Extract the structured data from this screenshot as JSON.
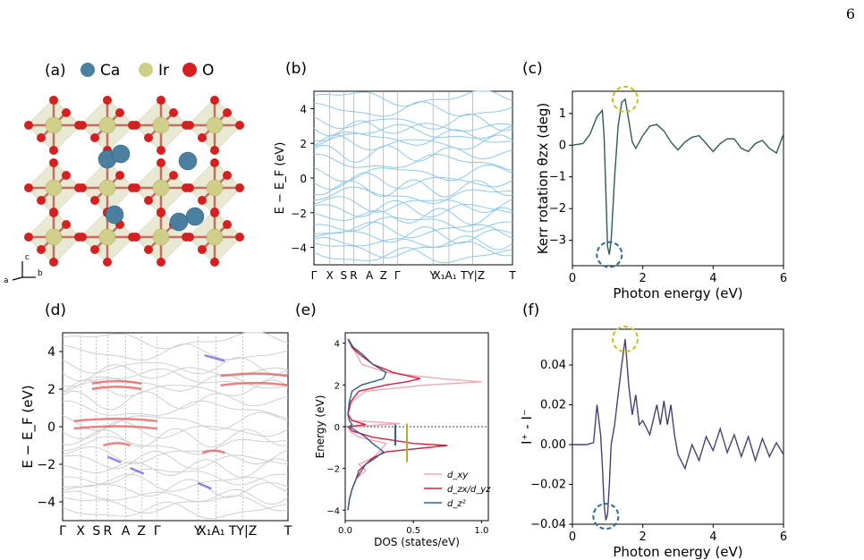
{
  "page_number": "6",
  "panel_labels": {
    "a": "(a)",
    "b": "(b)",
    "c": "(c)",
    "d": "(d)",
    "e": "(e)",
    "f": "(f)"
  },
  "legend_a": [
    {
      "label": "Ca",
      "color": "#4a7fa0"
    },
    {
      "label": "Ir",
      "color": "#cfcf8a"
    },
    {
      "label": "O",
      "color": "#d42020"
    }
  ],
  "axes_a": {
    "c": "c",
    "a": "a",
    "b": "b"
  },
  "band_b": {
    "ylabel": "E − E_F (eV)",
    "yticks": [
      "4",
      "2",
      "0",
      "−2",
      "−4"
    ],
    "xticks": [
      "Γ",
      "X",
      "S",
      "R",
      "A",
      "Z",
      "Γ",
      "Y",
      "X₁A₁",
      "TY|Z",
      "T"
    ]
  },
  "band_d": {
    "ylabel": "E − E_F (eV)",
    "yticks": [
      "4",
      "2",
      "0",
      "−2",
      "−4"
    ],
    "xticks": [
      "Γ",
      "X",
      "S",
      "R",
      "A",
      "Z",
      "Γ",
      "Y",
      "X₁A₁",
      "TY|Z",
      "T"
    ]
  },
  "chart_data": [
    {
      "panel": "c",
      "type": "line",
      "xlabel": "Photon energy (eV)",
      "ylabel": "Kerr rotation θzx (deg)",
      "xlim": [
        0,
        6
      ],
      "ylim": [
        -3.8,
        1.7
      ],
      "xticks": [
        "0",
        "2",
        "4",
        "6"
      ],
      "yticks": [
        "1",
        "0",
        "−1",
        "−2",
        "−3"
      ],
      "color": "#2f5a55",
      "x": [
        0,
        0.3,
        0.5,
        0.7,
        0.85,
        0.9,
        0.95,
        1.0,
        1.05,
        1.1,
        1.2,
        1.3,
        1.4,
        1.5,
        1.6,
        1.7,
        1.8,
        2.0,
        2.2,
        2.4,
        2.6,
        2.8,
        3.0,
        3.2,
        3.4,
        3.6,
        3.8,
        4.0,
        4.2,
        4.4,
        4.6,
        4.8,
        5.0,
        5.2,
        5.4,
        5.6,
        5.8,
        6.0
      ],
      "y": [
        0.0,
        0.05,
        0.35,
        0.9,
        1.1,
        0.3,
        -1.5,
        -3.2,
        -3.45,
        -3.0,
        -1.0,
        0.6,
        1.35,
        1.45,
        0.8,
        0.1,
        -0.1,
        0.3,
        0.6,
        0.65,
        0.45,
        0.1,
        -0.15,
        0.1,
        0.25,
        0.3,
        0.05,
        -0.2,
        0.05,
        0.2,
        0.2,
        -0.1,
        -0.2,
        0.05,
        0.15,
        -0.1,
        -0.25,
        0.35
      ]
    },
    {
      "panel": "e",
      "type": "line",
      "xlabel": "DOS (states/eV)",
      "ylabel": "Energy (eV)",
      "xlim": [
        0,
        1.05
      ],
      "ylim": [
        -4.5,
        4.5
      ],
      "xticks": [
        "0.0",
        "0.5",
        "1.0"
      ],
      "yticks": [
        "4",
        "2",
        "0",
        "−2",
        "−4"
      ],
      "series": [
        {
          "name": "d_xy",
          "color": "#f0a8b4",
          "e": [
            4.2,
            3.8,
            3.5,
            3.0,
            2.6,
            2.3,
            2.15,
            2.0,
            1.7,
            1.2,
            0.6,
            0.3,
            0.15,
            0.0,
            -0.2,
            -0.5,
            -0.8,
            -1.2,
            -1.5,
            -1.8,
            -2.1,
            -2.5,
            -3.0,
            -3.5,
            -4.0
          ],
          "d": [
            0.03,
            0.05,
            0.08,
            0.12,
            0.3,
            0.7,
            1.0,
            0.6,
            0.15,
            0.05,
            0.02,
            0.03,
            0.4,
            0.05,
            0.03,
            0.1,
            0.3,
            0.25,
            0.2,
            0.1,
            0.15,
            0.08,
            0.05,
            0.03,
            0.02
          ]
        },
        {
          "name": "d_zx/d_yz",
          "color": "#d02040",
          "e": [
            4.2,
            3.8,
            3.5,
            3.0,
            2.6,
            2.3,
            2.15,
            2.0,
            1.7,
            1.2,
            0.6,
            0.3,
            0.1,
            0.0,
            -0.2,
            -0.5,
            -0.8,
            -0.9,
            -1.2,
            -1.5,
            -1.8,
            -2.1,
            -2.5,
            -3.0,
            -3.5,
            -4.0
          ],
          "d": [
            0.02,
            0.05,
            0.1,
            0.2,
            0.35,
            0.55,
            0.45,
            0.3,
            0.1,
            0.04,
            0.02,
            0.05,
            0.15,
            0.02,
            0.05,
            0.2,
            0.5,
            0.75,
            0.3,
            0.2,
            0.15,
            0.1,
            0.08,
            0.05,
            0.03,
            0.02
          ]
        },
        {
          "name": "d_z²",
          "color": "#2f6090",
          "e": [
            4.2,
            3.8,
            3.5,
            3.0,
            2.6,
            2.3,
            2.15,
            2.0,
            1.7,
            1.2,
            0.6,
            0.3,
            0.1,
            0.0,
            -0.2,
            -0.5,
            -0.8,
            -1.2,
            -1.5,
            -1.8,
            -2.1,
            -2.5,
            -3.0,
            -3.5,
            -4.0
          ],
          "d": [
            0.02,
            0.06,
            0.12,
            0.2,
            0.3,
            0.28,
            0.2,
            0.12,
            0.05,
            0.03,
            0.02,
            0.03,
            0.05,
            0.03,
            0.08,
            0.15,
            0.2,
            0.28,
            0.22,
            0.15,
            0.12,
            0.08,
            0.05,
            0.03,
            0.02
          ]
        }
      ]
    },
    {
      "panel": "f",
      "type": "line",
      "xlabel": "Photon energy (eV)",
      "ylabel": "I⁺ - I⁻",
      "xlim": [
        0,
        6
      ],
      "ylim": [
        -0.04,
        0.058
      ],
      "xticks": [
        "0",
        "2",
        "4",
        "6"
      ],
      "yticks": [
        "0.04",
        "0.02",
        "0.00",
        "−0.02",
        "−0.04"
      ],
      "color": "#4b3f72",
      "x": [
        0,
        0.4,
        0.6,
        0.7,
        0.8,
        0.85,
        0.9,
        0.95,
        1.0,
        1.05,
        1.1,
        1.2,
        1.3,
        1.4,
        1.5,
        1.6,
        1.7,
        1.8,
        1.9,
        2.0,
        2.2,
        2.4,
        2.5,
        2.6,
        2.7,
        2.8,
        2.9,
        3.0,
        3.2,
        3.4,
        3.6,
        3.8,
        4.0,
        4.2,
        4.4,
        4.6,
        4.8,
        5.0,
        5.2,
        5.4,
        5.6,
        5.8,
        6.0
      ],
      "y": [
        0,
        0.0,
        0.001,
        0.02,
        0.005,
        -0.01,
        -0.03,
        -0.038,
        -0.035,
        -0.02,
        0.0,
        0.01,
        0.025,
        0.04,
        0.053,
        0.03,
        0.015,
        0.025,
        0.01,
        0.012,
        0.005,
        0.02,
        0.01,
        0.022,
        0.01,
        0.02,
        0.005,
        -0.005,
        -0.012,
        0.0,
        -0.008,
        0.004,
        -0.003,
        0.008,
        -0.004,
        0.005,
        -0.006,
        0.004,
        -0.008,
        0.003,
        -0.006,
        0.001,
        -0.005
      ]
    }
  ]
}
